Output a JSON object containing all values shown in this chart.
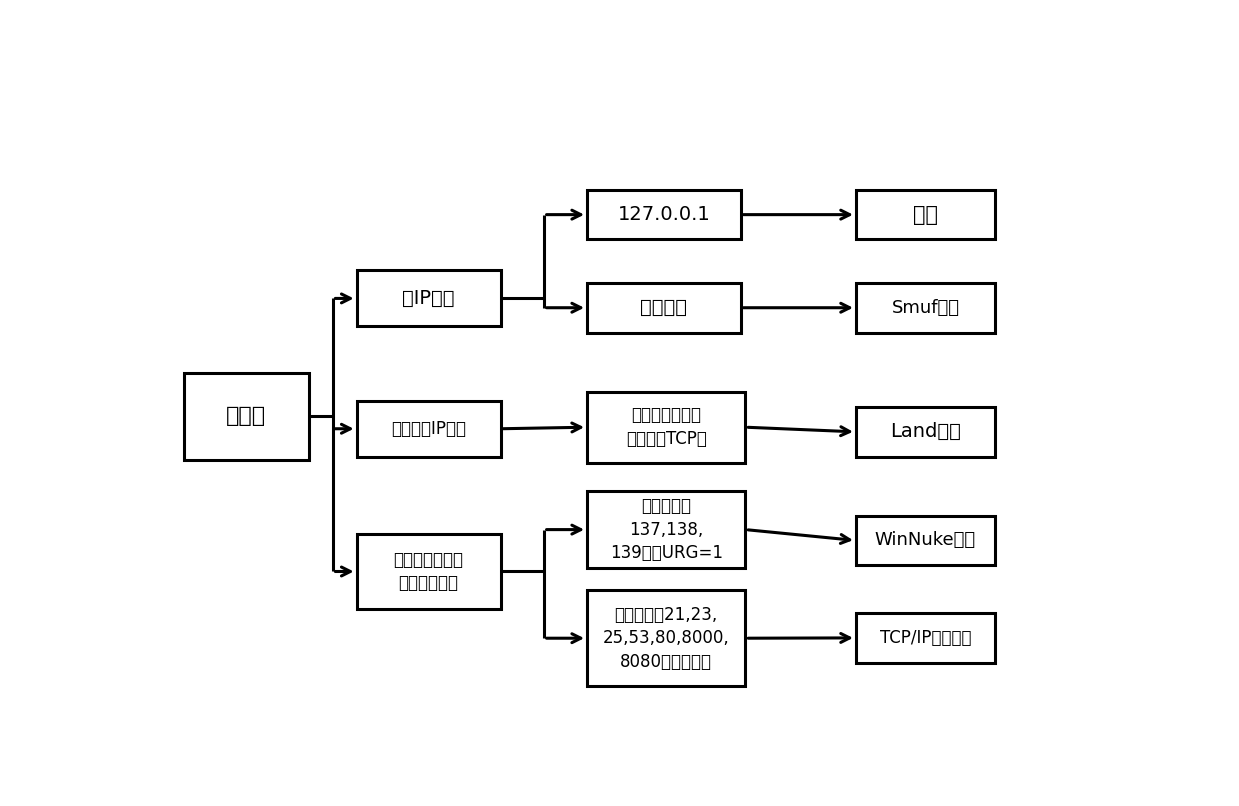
{
  "background_color": "#ffffff",
  "box_edge_color": "#000000",
  "box_face_color": "#ffffff",
  "arrow_color": "#000000",
  "linewidth": 2.2,
  "boxes": {
    "流数据": [
      0.03,
      0.415,
      0.13,
      0.14,
      "流数据",
      16
    ],
    "源IP检测": [
      0.21,
      0.63,
      0.15,
      0.09,
      "源IP检测",
      14
    ],
    "源目的IP": [
      0.21,
      0.42,
      0.15,
      0.09,
      "源、目的IP相等",
      12
    ],
    "检查目标端口": [
      0.21,
      0.175,
      0.15,
      0.12,
      "检查目标端口以\n及数据标志位",
      12
    ],
    "127001": [
      0.45,
      0.77,
      0.16,
      0.08,
      "127.0.0.1",
      14
    ],
    "广播地址": [
      0.45,
      0.62,
      0.16,
      0.08,
      "广播地址",
      14
    ],
    "源端口TCP": [
      0.45,
      0.41,
      0.165,
      0.115,
      "源端口与目的端\n口相等的TCP流",
      12
    ],
    "目标137": [
      0.45,
      0.24,
      0.165,
      0.125,
      "目标端口为\n137,138,\n139，且URG=1",
      12
    ],
    "目标21": [
      0.45,
      0.05,
      0.165,
      0.155,
      "目标端口为21,23,\n25,53,80,8000,\n8080以外的端口",
      12
    ],
    "异常": [
      0.73,
      0.77,
      0.145,
      0.08,
      "异常",
      15
    ],
    "Smuf攻击": [
      0.73,
      0.62,
      0.145,
      0.08,
      "Smuf攻击",
      13
    ],
    "Land攻击": [
      0.73,
      0.42,
      0.145,
      0.08,
      "Land攻击",
      14
    ],
    "WinNuke攻击": [
      0.73,
      0.245,
      0.145,
      0.08,
      "WinNuke攻击",
      13
    ],
    "TCPIP端口扫描": [
      0.73,
      0.088,
      0.145,
      0.08,
      "TCP/IP端口扫描",
      12
    ]
  }
}
